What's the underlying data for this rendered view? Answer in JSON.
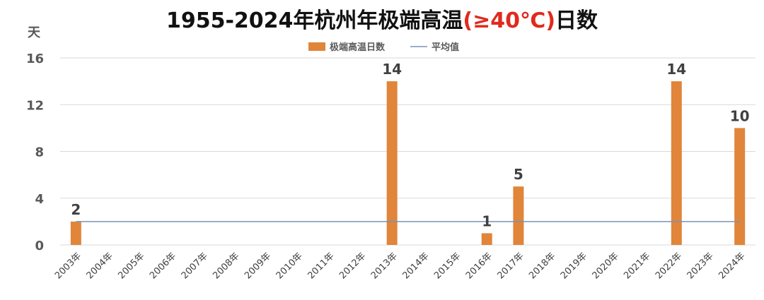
{
  "title": {
    "part1": "1955-2024年杭州年极端高温",
    "part2": "(≥40℃)",
    "part3": "日数"
  },
  "colors": {
    "bar": "#e0853a",
    "avg_line": "#7a93b8",
    "title_highlight": "#e02a1e",
    "grid": "#d9d9d9"
  },
  "chart_data": {
    "type": "bar",
    "title": "1955-2024年杭州年极端高温(≥40℃)日数",
    "ylabel": "天",
    "ylim": [
      0,
      16
    ],
    "yticks": [
      0,
      4,
      8,
      12,
      16
    ],
    "grid": true,
    "legend_position": "top-center",
    "categories": [
      "2003年",
      "2004年",
      "2005年",
      "2006年",
      "2007年",
      "2008年",
      "2009年",
      "2010年",
      "2011年",
      "2012年",
      "2013年",
      "2014年",
      "2015年",
      "2016年",
      "2017年",
      "2018年",
      "2019年",
      "2020年",
      "2021年",
      "2022年",
      "2023年",
      "2024年"
    ],
    "series": [
      {
        "name": "极端高温日数",
        "type": "bar",
        "values": [
          2,
          0,
          0,
          0,
          0,
          0,
          0,
          0,
          0,
          0,
          14,
          0,
          0,
          1,
          5,
          0,
          0,
          0,
          0,
          14,
          0,
          10
        ]
      },
      {
        "name": "平均值",
        "type": "line",
        "values": [
          2,
          2,
          2,
          2,
          2,
          2,
          2,
          2,
          2,
          2,
          2,
          2,
          2,
          2,
          2,
          2,
          2,
          2,
          2,
          2,
          2,
          2
        ]
      }
    ]
  }
}
